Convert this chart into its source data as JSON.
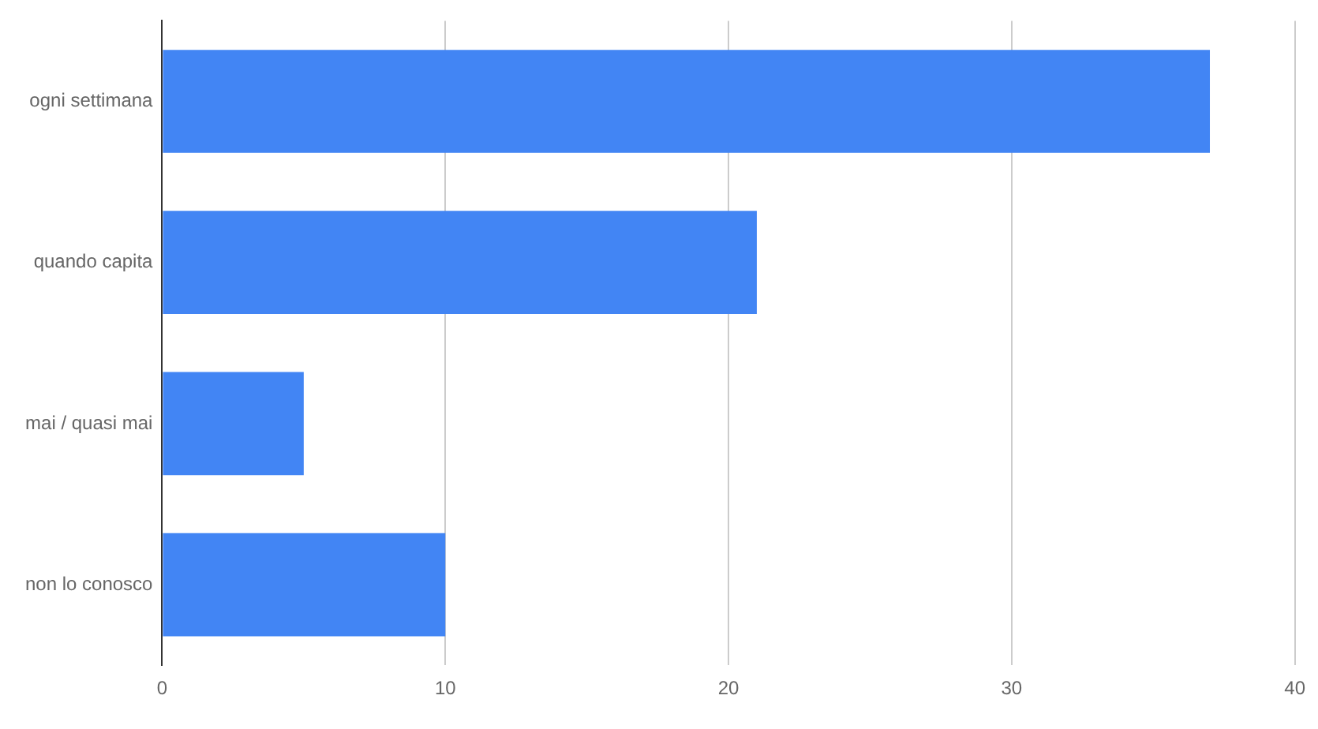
{
  "chart_data": {
    "type": "bar",
    "orientation": "horizontal",
    "categories": [
      "ogni settimana",
      "quando capita",
      "mai / quasi mai",
      "non lo conosco"
    ],
    "values": [
      37,
      21,
      5,
      10
    ],
    "color": "#4285f4",
    "xlim": [
      0,
      40
    ],
    "xticks": [
      0,
      10,
      20,
      30,
      40
    ],
    "grid": "x",
    "legend": false
  }
}
